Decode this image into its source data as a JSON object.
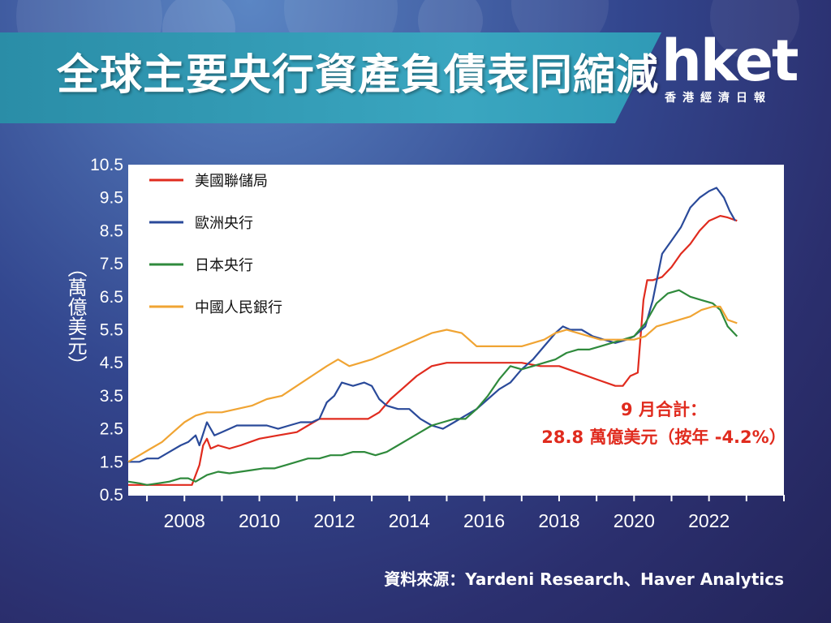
{
  "header": {
    "title": "全球主要央行資產負債表同縮減",
    "logo_main": "hket",
    "logo_sub": "香港經濟日報"
  },
  "source": "資料來源：Yardeni Research、Haver Analytics",
  "annotation": {
    "line1": "9 月合計：",
    "line2": "28.8 萬億美元（按年 -4.2%）"
  },
  "colors": {
    "fed": "#e02b1e",
    "ecb": "#2a4a9a",
    "boj": "#2f8a3c",
    "pboc": "#f0a433",
    "annotation": "#e02b1e"
  },
  "chart_data": {
    "type": "line",
    "title": "",
    "xlabel": "",
    "ylabel": "（萬億美元）",
    "xlim": [
      2006.5,
      2024
    ],
    "ylim": [
      0.5,
      10.5
    ],
    "x_ticks": [
      2008,
      2010,
      2012,
      2014,
      2016,
      2018,
      2020,
      2022
    ],
    "x_tick_labels": [
      "2008",
      "2010",
      "2012",
      "2014",
      "2016",
      "2018",
      "2020",
      "2022"
    ],
    "y_ticks": [
      0.5,
      1.5,
      2.5,
      3.5,
      4.5,
      5.5,
      6.5,
      7.5,
      8.5,
      9.5,
      10.5
    ],
    "y_tick_labels": [
      "0.5",
      "1.5",
      "2.5",
      "3.5",
      "4.5",
      "5.5",
      "6.5",
      "7.5",
      "8.5",
      "9.5",
      "10.5"
    ],
    "grid": false,
    "legend_position": "top-left",
    "series": [
      {
        "name": "美國聯儲局",
        "color": "#e02b1e",
        "points": [
          [
            2006.5,
            0.8
          ],
          [
            2007.0,
            0.8
          ],
          [
            2007.5,
            0.8
          ],
          [
            2008.0,
            0.8
          ],
          [
            2008.2,
            0.8
          ],
          [
            2008.4,
            1.4
          ],
          [
            2008.5,
            2.0
          ],
          [
            2008.6,
            2.2
          ],
          [
            2008.7,
            1.9
          ],
          [
            2008.9,
            2.0
          ],
          [
            2009.2,
            1.9
          ],
          [
            2009.5,
            2.0
          ],
          [
            2010.0,
            2.2
          ],
          [
            2010.5,
            2.3
          ],
          [
            2011.0,
            2.4
          ],
          [
            2011.3,
            2.6
          ],
          [
            2011.6,
            2.8
          ],
          [
            2012.0,
            2.8
          ],
          [
            2012.5,
            2.8
          ],
          [
            2012.9,
            2.8
          ],
          [
            2013.2,
            3.0
          ],
          [
            2013.5,
            3.4
          ],
          [
            2013.8,
            3.7
          ],
          [
            2014.2,
            4.1
          ],
          [
            2014.6,
            4.4
          ],
          [
            2015.0,
            4.5
          ],
          [
            2016.0,
            4.5
          ],
          [
            2017.0,
            4.5
          ],
          [
            2017.5,
            4.4
          ],
          [
            2018.0,
            4.4
          ],
          [
            2018.5,
            4.2
          ],
          [
            2019.0,
            4.0
          ],
          [
            2019.5,
            3.8
          ],
          [
            2019.7,
            3.8
          ],
          [
            2019.9,
            4.1
          ],
          [
            2020.1,
            4.2
          ],
          [
            2020.25,
            6.4
          ],
          [
            2020.35,
            7.0
          ],
          [
            2020.5,
            7.0
          ],
          [
            2020.75,
            7.1
          ],
          [
            2021.0,
            7.4
          ],
          [
            2021.25,
            7.8
          ],
          [
            2021.5,
            8.1
          ],
          [
            2021.75,
            8.5
          ],
          [
            2022.0,
            8.8
          ],
          [
            2022.3,
            8.95
          ],
          [
            2022.5,
            8.9
          ],
          [
            2022.75,
            8.8
          ]
        ]
      },
      {
        "name": "歐洲央行",
        "color": "#2a4a9a",
        "points": [
          [
            2006.5,
            1.5
          ],
          [
            2006.8,
            1.5
          ],
          [
            2007.0,
            1.6
          ],
          [
            2007.3,
            1.6
          ],
          [
            2007.6,
            1.8
          ],
          [
            2007.9,
            2.0
          ],
          [
            2008.1,
            2.1
          ],
          [
            2008.3,
            2.3
          ],
          [
            2008.4,
            2.0
          ],
          [
            2008.6,
            2.7
          ],
          [
            2008.8,
            2.3
          ],
          [
            2009.0,
            2.4
          ],
          [
            2009.2,
            2.5
          ],
          [
            2009.4,
            2.6
          ],
          [
            2009.6,
            2.6
          ],
          [
            2009.9,
            2.6
          ],
          [
            2010.2,
            2.6
          ],
          [
            2010.5,
            2.5
          ],
          [
            2010.8,
            2.6
          ],
          [
            2011.1,
            2.7
          ],
          [
            2011.4,
            2.7
          ],
          [
            2011.6,
            2.8
          ],
          [
            2011.8,
            3.3
          ],
          [
            2012.0,
            3.5
          ],
          [
            2012.2,
            3.9
          ],
          [
            2012.5,
            3.8
          ],
          [
            2012.8,
            3.9
          ],
          [
            2013.0,
            3.8
          ],
          [
            2013.2,
            3.4
          ],
          [
            2013.4,
            3.2
          ],
          [
            2013.7,
            3.1
          ],
          [
            2014.0,
            3.1
          ],
          [
            2014.3,
            2.8
          ],
          [
            2014.6,
            2.6
          ],
          [
            2014.9,
            2.5
          ],
          [
            2015.2,
            2.7
          ],
          [
            2015.5,
            2.9
          ],
          [
            2015.8,
            3.1
          ],
          [
            2016.1,
            3.4
          ],
          [
            2016.4,
            3.7
          ],
          [
            2016.7,
            3.9
          ],
          [
            2017.0,
            4.3
          ],
          [
            2017.3,
            4.6
          ],
          [
            2017.6,
            5.0
          ],
          [
            2017.9,
            5.4
          ],
          [
            2018.1,
            5.6
          ],
          [
            2018.3,
            5.5
          ],
          [
            2018.6,
            5.5
          ],
          [
            2018.9,
            5.3
          ],
          [
            2019.2,
            5.2
          ],
          [
            2019.5,
            5.1
          ],
          [
            2019.8,
            5.2
          ],
          [
            2020.0,
            5.3
          ],
          [
            2020.3,
            5.6
          ],
          [
            2020.5,
            6.4
          ],
          [
            2020.75,
            7.8
          ],
          [
            2021.0,
            8.2
          ],
          [
            2021.25,
            8.6
          ],
          [
            2021.5,
            9.2
          ],
          [
            2021.75,
            9.5
          ],
          [
            2022.0,
            9.7
          ],
          [
            2022.2,
            9.8
          ],
          [
            2022.4,
            9.5
          ],
          [
            2022.55,
            9.1
          ],
          [
            2022.7,
            8.8
          ]
        ]
      },
      {
        "name": "日本央行",
        "color": "#2f8a3c",
        "points": [
          [
            2006.5,
            0.9
          ],
          [
            2006.8,
            0.85
          ],
          [
            2007.0,
            0.8
          ],
          [
            2007.3,
            0.85
          ],
          [
            2007.6,
            0.9
          ],
          [
            2007.9,
            1.0
          ],
          [
            2008.1,
            1.0
          ],
          [
            2008.3,
            0.9
          ],
          [
            2008.6,
            1.1
          ],
          [
            2008.9,
            1.2
          ],
          [
            2009.2,
            1.15
          ],
          [
            2009.5,
            1.2
          ],
          [
            2009.8,
            1.25
          ],
          [
            2010.1,
            1.3
          ],
          [
            2010.4,
            1.3
          ],
          [
            2010.7,
            1.4
          ],
          [
            2011.0,
            1.5
          ],
          [
            2011.3,
            1.6
          ],
          [
            2011.6,
            1.6
          ],
          [
            2011.9,
            1.7
          ],
          [
            2012.2,
            1.7
          ],
          [
            2012.5,
            1.8
          ],
          [
            2012.8,
            1.8
          ],
          [
            2013.1,
            1.7
          ],
          [
            2013.4,
            1.8
          ],
          [
            2013.7,
            2.0
          ],
          [
            2014.0,
            2.2
          ],
          [
            2014.3,
            2.4
          ],
          [
            2014.6,
            2.6
          ],
          [
            2014.9,
            2.7
          ],
          [
            2015.2,
            2.8
          ],
          [
            2015.5,
            2.8
          ],
          [
            2015.8,
            3.1
          ],
          [
            2016.1,
            3.5
          ],
          [
            2016.4,
            4.0
          ],
          [
            2016.7,
            4.4
          ],
          [
            2017.0,
            4.3
          ],
          [
            2017.3,
            4.4
          ],
          [
            2017.6,
            4.5
          ],
          [
            2017.9,
            4.6
          ],
          [
            2018.2,
            4.8
          ],
          [
            2018.5,
            4.9
          ],
          [
            2018.8,
            4.9
          ],
          [
            2019.1,
            5.0
          ],
          [
            2019.4,
            5.1
          ],
          [
            2019.7,
            5.2
          ],
          [
            2020.0,
            5.3
          ],
          [
            2020.3,
            5.7
          ],
          [
            2020.6,
            6.3
          ],
          [
            2020.9,
            6.6
          ],
          [
            2021.2,
            6.7
          ],
          [
            2021.5,
            6.5
          ],
          [
            2021.8,
            6.4
          ],
          [
            2022.1,
            6.3
          ],
          [
            2022.3,
            6.1
          ],
          [
            2022.5,
            5.6
          ],
          [
            2022.75,
            5.3
          ]
        ]
      },
      {
        "name": "中國人民銀行",
        "color": "#f0a433",
        "points": [
          [
            2006.5,
            1.5
          ],
          [
            2006.8,
            1.7
          ],
          [
            2007.1,
            1.9
          ],
          [
            2007.4,
            2.1
          ],
          [
            2007.7,
            2.4
          ],
          [
            2008.0,
            2.7
          ],
          [
            2008.3,
            2.9
          ],
          [
            2008.6,
            3.0
          ],
          [
            2009.0,
            3.0
          ],
          [
            2009.4,
            3.1
          ],
          [
            2009.8,
            3.2
          ],
          [
            2010.2,
            3.4
          ],
          [
            2010.6,
            3.5
          ],
          [
            2011.0,
            3.8
          ],
          [
            2011.4,
            4.1
          ],
          [
            2011.8,
            4.4
          ],
          [
            2012.1,
            4.6
          ],
          [
            2012.4,
            4.4
          ],
          [
            2012.7,
            4.5
          ],
          [
            2013.0,
            4.6
          ],
          [
            2013.4,
            4.8
          ],
          [
            2013.8,
            5.0
          ],
          [
            2014.2,
            5.2
          ],
          [
            2014.6,
            5.4
          ],
          [
            2015.0,
            5.5
          ],
          [
            2015.4,
            5.4
          ],
          [
            2015.8,
            5.0
          ],
          [
            2016.2,
            5.0
          ],
          [
            2016.6,
            5.0
          ],
          [
            2017.0,
            5.0
          ],
          [
            2017.3,
            5.1
          ],
          [
            2017.6,
            5.2
          ],
          [
            2017.9,
            5.4
          ],
          [
            2018.2,
            5.5
          ],
          [
            2018.5,
            5.4
          ],
          [
            2018.8,
            5.3
          ],
          [
            2019.1,
            5.2
          ],
          [
            2019.4,
            5.2
          ],
          [
            2019.7,
            5.2
          ],
          [
            2020.0,
            5.2
          ],
          [
            2020.3,
            5.3
          ],
          [
            2020.6,
            5.6
          ],
          [
            2020.9,
            5.7
          ],
          [
            2021.2,
            5.8
          ],
          [
            2021.5,
            5.9
          ],
          [
            2021.8,
            6.1
          ],
          [
            2022.1,
            6.2
          ],
          [
            2022.3,
            6.2
          ],
          [
            2022.5,
            5.8
          ],
          [
            2022.75,
            5.7
          ]
        ]
      }
    ]
  }
}
